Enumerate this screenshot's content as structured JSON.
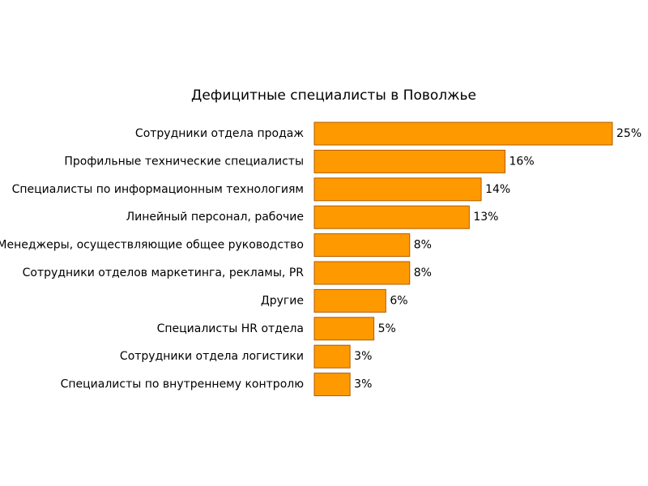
{
  "chart_data": {
    "type": "bar",
    "orientation": "horizontal",
    "title": "Дефицитные специалисты в Поволжье",
    "categories": [
      "Сотрудники отдела продаж",
      "Профильные технические специалисты",
      "Специалисты по информационным технологиям",
      "Линейный персонал, рабочие",
      "Менеджеры, осуществляющие общее руководство",
      "Сотрудники отделов маркетинга, рекламы, PR",
      "Другие",
      "Специалисты HR отдела",
      "Сотрудники отдела логистики",
      "Специалисты по внутреннему контролю"
    ],
    "values": [
      25,
      16,
      14,
      13,
      8,
      8,
      6,
      5,
      3,
      3
    ],
    "value_labels": [
      "25%",
      "16%",
      "14%",
      "13%",
      "8%",
      "8%",
      "6%",
      "5%",
      "3%",
      "3%"
    ],
    "color": "#ff9900"
  }
}
